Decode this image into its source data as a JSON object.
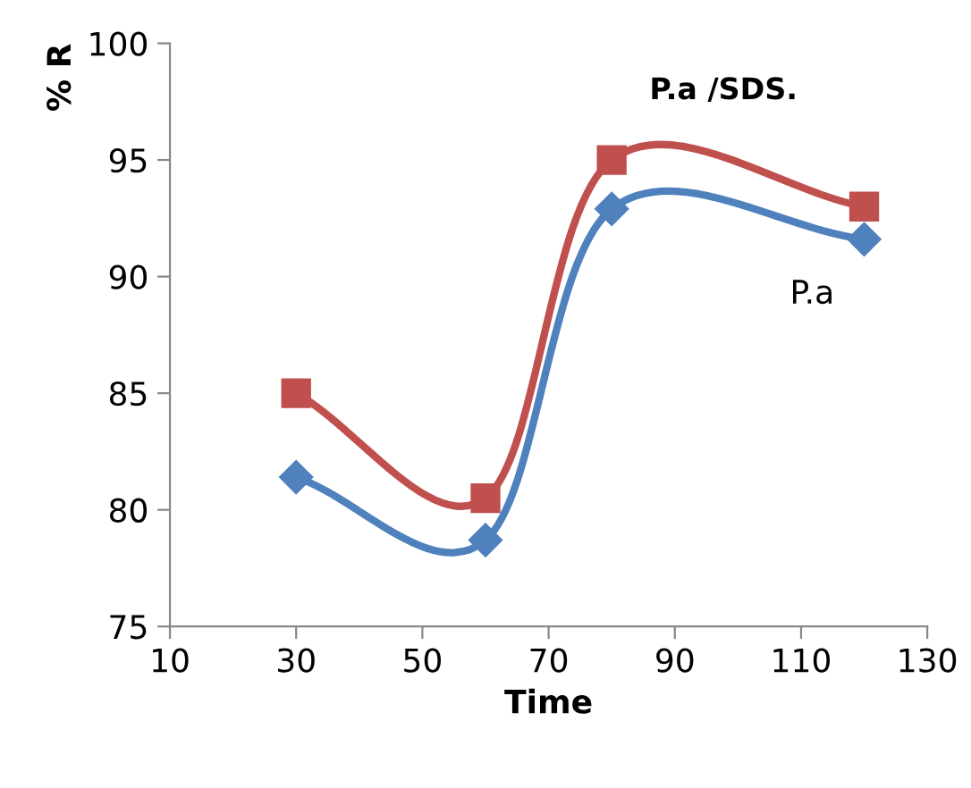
{
  "chart_data": {
    "type": "line",
    "xlabel": "Time",
    "ylabel": "% R",
    "x": [
      30,
      60,
      80,
      120
    ],
    "series": [
      {
        "name": "P.a /SDS.",
        "color": "#c0504d",
        "marker": "square",
        "values": [
          85,
          80.5,
          95,
          93
        ]
      },
      {
        "name": "P.a",
        "color": "#4f81bd",
        "marker": "diamond",
        "values": [
          81.4,
          78.7,
          92.9,
          91.6
        ]
      }
    ],
    "xlim": [
      10,
      130
    ],
    "xticks": [
      10,
      30,
      50,
      70,
      90,
      110,
      130
    ],
    "ylim": [
      75,
      100
    ],
    "yticks": [
      75,
      80,
      85,
      90,
      95,
      100
    ],
    "grid": false,
    "legend": false,
    "line_style": "solid"
  }
}
